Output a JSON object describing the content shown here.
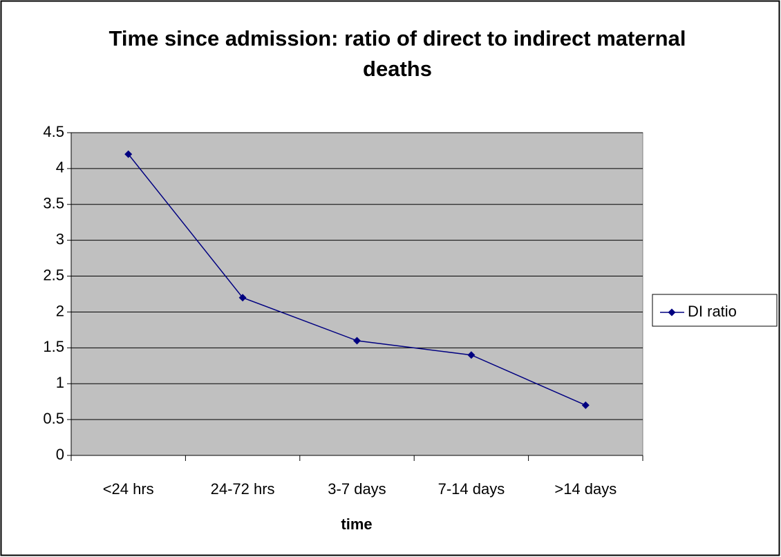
{
  "chart_data": {
    "type": "line",
    "title": "Time since admission: ratio of direct to indirect maternal deaths",
    "x_label": "time",
    "categories": [
      "<24 hrs",
      "24-72 hrs",
      "3-7 days",
      "7-14 days",
      ">14 days"
    ],
    "series": [
      {
        "name": "DI ratio",
        "color": "#000080",
        "values": [
          4.2,
          2.2,
          1.6,
          1.4,
          0.7
        ]
      }
    ],
    "ylim": [
      0,
      4.5
    ],
    "yticks": [
      0,
      0.5,
      1,
      1.5,
      2,
      2.5,
      3,
      3.5,
      4,
      4.5
    ],
    "grid": true,
    "legend": "right",
    "plot_background": "#c0c0c0"
  }
}
